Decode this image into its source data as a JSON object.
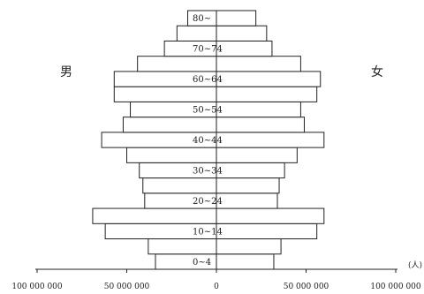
{
  "chart_data": {
    "type": "bar",
    "orientation": "horizontal-butterfly",
    "title": "",
    "male_label": "男",
    "female_label": "女",
    "unit": "(人)",
    "categories": [
      "0~4",
      "5~9",
      "10~14",
      "15~19",
      "20~24",
      "25~29",
      "30~34",
      "35~39",
      "40~44",
      "45~49",
      "50~54",
      "55~59",
      "60~64",
      "65~69",
      "70~74",
      "75~79",
      "80~"
    ],
    "category_labels_shown": [
      "0~4",
      "",
      "10~14",
      "",
      "20~24",
      "",
      "30~34",
      "",
      "40~44",
      "",
      "50~54",
      "",
      "60~64",
      "",
      "70~74",
      "",
      "80~"
    ],
    "series": [
      {
        "name": "男",
        "side": "left",
        "values": [
          34000000,
          38000000,
          62000000,
          69000000,
          40000000,
          41000000,
          43000000,
          50000000,
          64000000,
          52000000,
          48000000,
          57000000,
          57000000,
          44000000,
          29000000,
          22000000,
          16000000
        ]
      },
      {
        "name": "女",
        "side": "right",
        "values": [
          32000000,
          36000000,
          56000000,
          60000000,
          34000000,
          35000000,
          38000000,
          45000000,
          60000000,
          49000000,
          47000000,
          56000000,
          58000000,
          47000000,
          31000000,
          28000000,
          22000000
        ]
      }
    ],
    "xlim": [
      -100000000,
      100000000
    ],
    "x_ticks": [
      -100000000,
      -50000000,
      0,
      50000000,
      100000000
    ],
    "x_tick_labels": [
      "100 000 000",
      "50 000 000",
      "0",
      "50 000 000",
      "100 000 000"
    ],
    "grid": false,
    "legend": "none"
  }
}
